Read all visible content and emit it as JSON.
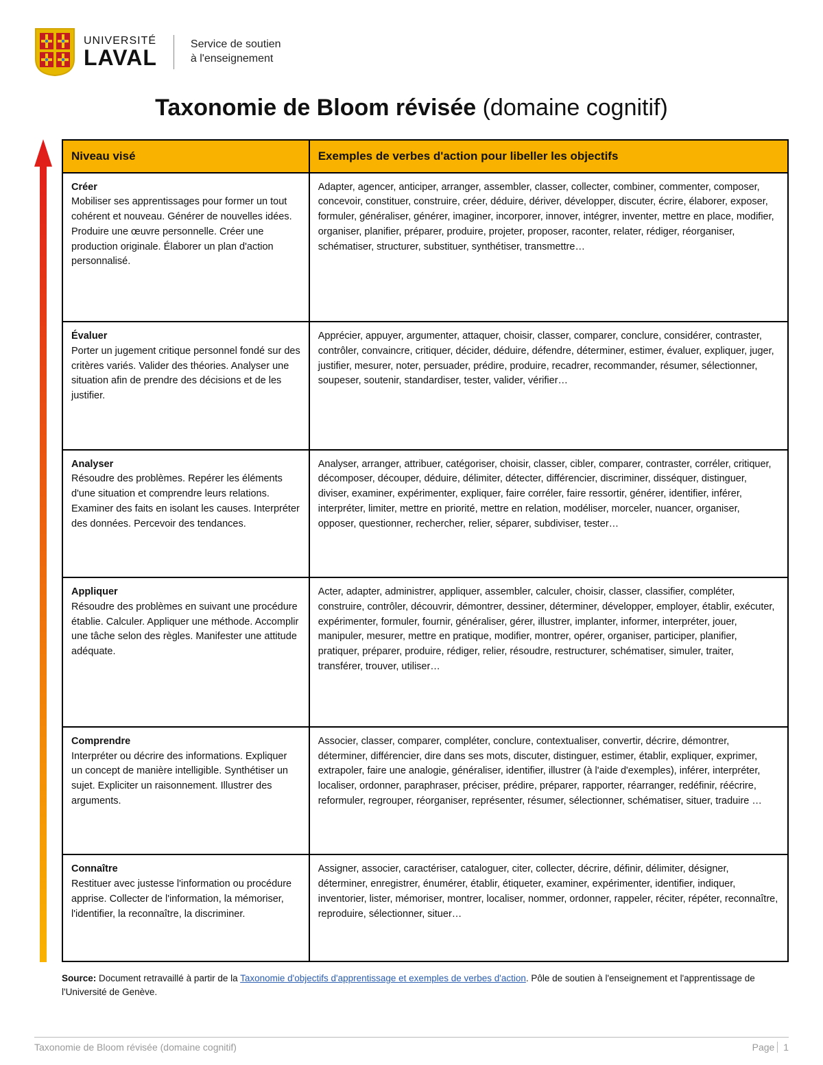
{
  "header": {
    "uni_line1": "UNIVERSITÉ",
    "uni_line2": "LAVAL",
    "service_line1": "Service de soutien",
    "service_line2": "à l'enseignement",
    "shield": {
      "bg": "#e6b800",
      "outline": "#d4a500",
      "panel": "#c41e1e",
      "cross": "#f5c518",
      "dot": "#3a6fbf"
    }
  },
  "title_bold": "Taxonomie de Bloom révisée",
  "title_rest": " (domaine cognitif)",
  "arrow": {
    "top_color": "#e01b1b",
    "bottom_color": "#f9b200"
  },
  "table": {
    "header_bg": "#f9b200",
    "col1_header": "Niveau visé",
    "col2_header": "Exemples de verbes d'action pour libeller les objectifs",
    "rows": [
      {
        "level": "Créer",
        "desc": "Mobiliser ses apprentissages pour former un tout cohérent et nouveau. Générer de nouvelles idées. Produire une œuvre personnelle. Créer une production originale. Élaborer un plan d'action personnalisé.",
        "verbs": "Adapter, agencer, anticiper, arranger, assembler, classer, collecter, combiner, commenter, composer, concevoir, constituer, construire, créer, déduire, dériver, développer, discuter, écrire, élaborer, exposer, formuler, généraliser, générer, imaginer, incorporer, innover, intégrer, inventer, mettre en place, modifier, organiser, planifier, préparer, produire, projeter, proposer, raconter, relater, rédiger, réorganiser, schématiser, structurer, substituer, synthétiser, transmettre…"
      },
      {
        "level": "Évaluer",
        "desc": "Porter un jugement critique personnel fondé sur des critères variés. Valider des théories. Analyser une situation afin de prendre des décisions et de les justifier.",
        "verbs": "Apprécier, appuyer, argumenter, attaquer, choisir, classer, comparer, conclure, considérer, contraster, contrôler, convaincre, critiquer, décider, déduire, défendre, déterminer, estimer, évaluer, expliquer, juger, justifier, mesurer, noter, persuader, prédire, produire, recadrer, recommander, résumer, sélectionner, soupeser, soutenir, standardiser, tester, valider, vérifier…"
      },
      {
        "level": "Analyser",
        "desc": "Résoudre des problèmes. Repérer les éléments d'une situation et comprendre leurs relations. Examiner des faits en isolant les causes. Interpréter des données. Percevoir des tendances.",
        "verbs": "Analyser, arranger, attribuer, catégoriser, choisir, classer, cibler, comparer, contraster, corréler, critiquer, décomposer, découper, déduire, délimiter, détecter, différencier, discriminer, disséquer, distinguer, diviser, examiner, expérimenter, expliquer, faire corréler, faire ressortir, générer, identifier, inférer, interpréter, limiter, mettre en priorité, mettre en relation, modéliser, morceler, nuancer, organiser, opposer, questionner, rechercher, relier, séparer, subdiviser, tester…"
      },
      {
        "level": "Appliquer",
        "desc": "Résoudre des problèmes en suivant une procédure établie. Calculer. Appliquer une méthode. Accomplir une tâche selon des règles. Manifester une attitude adéquate.",
        "verbs": "Acter, adapter, administrer, appliquer, assembler, calculer, choisir, classer, classifier, compléter, construire, contrôler, découvrir, démontrer, dessiner, déterminer, développer, employer, établir, exécuter, expérimenter, formuler, fournir, généraliser, gérer, illustrer, implanter, informer, interpréter, jouer, manipuler, mesurer, mettre en pratique, modifier, montrer, opérer, organiser, participer, planifier, pratiquer, préparer, produire, rédiger, relier, résoudre, restructurer, schématiser, simuler, traiter, transférer, trouver, utiliser…"
      },
      {
        "level": "Comprendre",
        "desc": "Interpréter ou décrire des informations. Expliquer un concept de manière intelligible. Synthétiser un sujet. Expliciter un raisonnement. Illustrer des arguments.",
        "verbs": "Associer, classer, comparer, compléter, conclure, contextualiser, convertir, décrire, démontrer, déterminer, différencier, dire dans ses mots, discuter, distinguer, estimer, établir, expliquer, exprimer, extrapoler, faire une analogie, généraliser, identifier, illustrer (à l'aide d'exemples), inférer, interpréter, localiser, ordonner, paraphraser, préciser, prédire, préparer, rapporter, réarranger, redéfinir, réécrire, reformuler, regrouper, réorganiser, représenter, résumer, sélectionner, schématiser, situer, traduire …"
      },
      {
        "level": "Connaître",
        "desc": "Restituer avec justesse l'information ou procédure apprise. Collecter de l'information, la mémoriser, l'identifier, la reconnaître, la discriminer.",
        "verbs": "Assigner, associer, caractériser, cataloguer, citer, collecter, décrire, définir, délimiter, désigner, déterminer, enregistrer, énumérer, établir, étiqueter, examiner, expérimenter, identifier, indiquer, inventorier, lister, mémoriser, montrer, localiser, nommer, ordonner, rappeler, réciter, répéter, reconnaître, reproduire, sélectionner, situer…"
      }
    ]
  },
  "source": {
    "prefix": "Source: ",
    "lead": "Document retravaillé à partir de la ",
    "link_text": "Taxonomie d'objectifs d'apprentissage et exemples de verbes d'action",
    "tail": ". Pôle de soutien à l'enseignement et l'apprentissage de l'Université de Genève."
  },
  "footer": {
    "left": "Taxonomie de Bloom révisée (domaine cognitif)",
    "page_label": "Page",
    "page_num": "1"
  }
}
